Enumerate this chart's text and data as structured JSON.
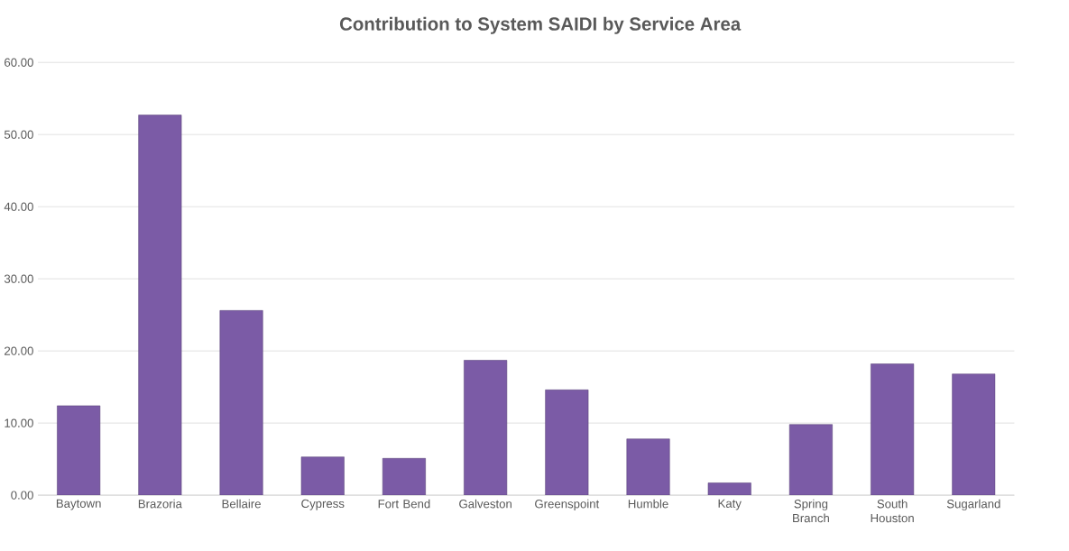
{
  "chart_data": {
    "type": "bar",
    "title": "Contribution to System SAIDI by Service Area",
    "categories": [
      "Baytown",
      "Brazoria",
      "Bellaire",
      "Cypress",
      "Fort Bend",
      "Galveston",
      "Greenspoint",
      "Humble",
      "Katy",
      "Spring Branch",
      "South Houston",
      "Sugarland"
    ],
    "values": [
      12.4,
      52.7,
      25.6,
      5.3,
      5.1,
      18.7,
      14.6,
      7.8,
      1.7,
      9.8,
      18.2,
      16.8
    ],
    "color": "#7b5ba6",
    "ylim": [
      0,
      60
    ],
    "yticks": [
      {
        "value": 0,
        "label": "0.00"
      },
      {
        "value": 10,
        "label": "10.00"
      },
      {
        "value": 20,
        "label": "20.00"
      },
      {
        "value": 30,
        "label": "30.00"
      },
      {
        "value": 40,
        "label": "40.00"
      },
      {
        "value": 50,
        "label": "50.00"
      },
      {
        "value": 60,
        "label": "60.00"
      }
    ],
    "grid": "y"
  }
}
